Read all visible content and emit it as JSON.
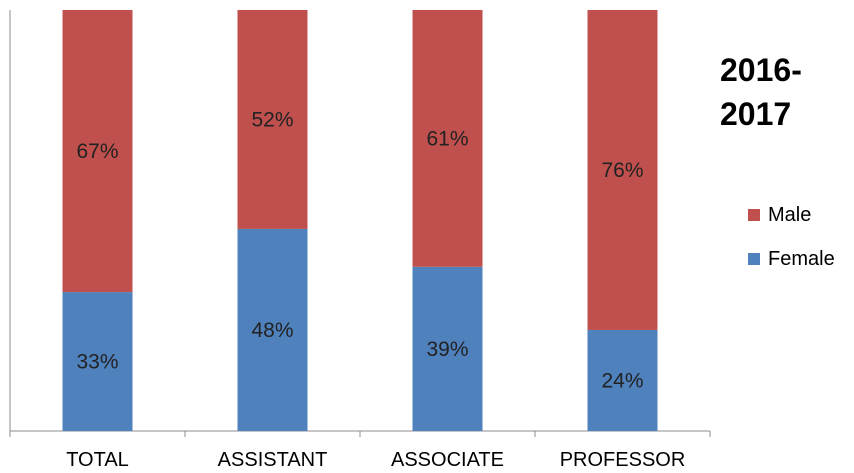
{
  "chart_data": {
    "type": "bar",
    "stacked": true,
    "percent_stacked": true,
    "title": "2016-\n2017",
    "categories": [
      "TOTAL",
      "ASSISTANT",
      "ASSOCIATE",
      "PROFESSOR"
    ],
    "series": [
      {
        "name": "Female",
        "color": "#4f81bd",
        "values": [
          33,
          48,
          39,
          24
        ],
        "labels": [
          "33%",
          "48%",
          "39%",
          "24%"
        ]
      },
      {
        "name": "Male",
        "color": "#c0504d",
        "values": [
          67,
          52,
          61,
          76
        ],
        "labels": [
          "67%",
          "52%",
          "61%",
          "76%"
        ]
      }
    ],
    "ylim": [
      0,
      100
    ],
    "grid": false,
    "legend_position": "right",
    "legend_order": [
      "Male",
      "Female"
    ]
  }
}
